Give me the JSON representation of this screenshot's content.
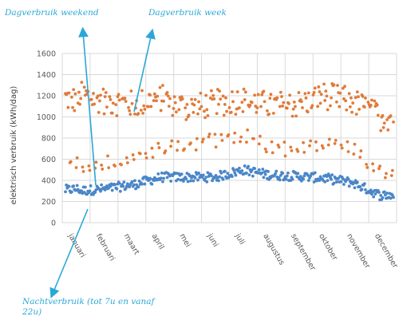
{
  "colors": {
    "dag": "#e07b39",
    "nacht": "#4a86c8",
    "annotation": "#2aa7d8",
    "grid": "#d9d9d9"
  },
  "annotations": {
    "weekend": "Dagverbruik weekend",
    "week": "Dagverbruik week",
    "night": "Nachtverbruik (tot 7u en vanaf 22u)"
  },
  "chart_data": {
    "type": "scatter",
    "title": "",
    "ylabel": "elektrisch verbruik (kWh/dag)",
    "xlabel": "",
    "ylim": [
      0,
      1600
    ],
    "yticks": [
      0,
      200,
      400,
      600,
      800,
      1000,
      1200,
      1400,
      1600
    ],
    "categories": [
      "januari",
      "februari",
      "maart",
      "april",
      "mei",
      "juni",
      "juli",
      "augustus",
      "september",
      "oktober",
      "november",
      "december"
    ],
    "grid": true,
    "series": [
      {
        "group": "dag",
        "monthly_levels": [
          1210,
          1150,
          1120,
          1180,
          1080,
          1130,
          1160,
          1110,
          1120,
          1200,
          1150,
          1000
        ],
        "weekend_levels": [
          480,
          560,
          600,
          700,
          740,
          780,
          840,
          700,
          700,
          740,
          700,
          480
        ]
      },
      {
        "group": "nacht",
        "monthly_levels": [
          300,
          320,
          360,
          430,
          430,
          430,
          500,
          450,
          440,
          420,
          380,
          260
        ]
      }
    ]
  }
}
